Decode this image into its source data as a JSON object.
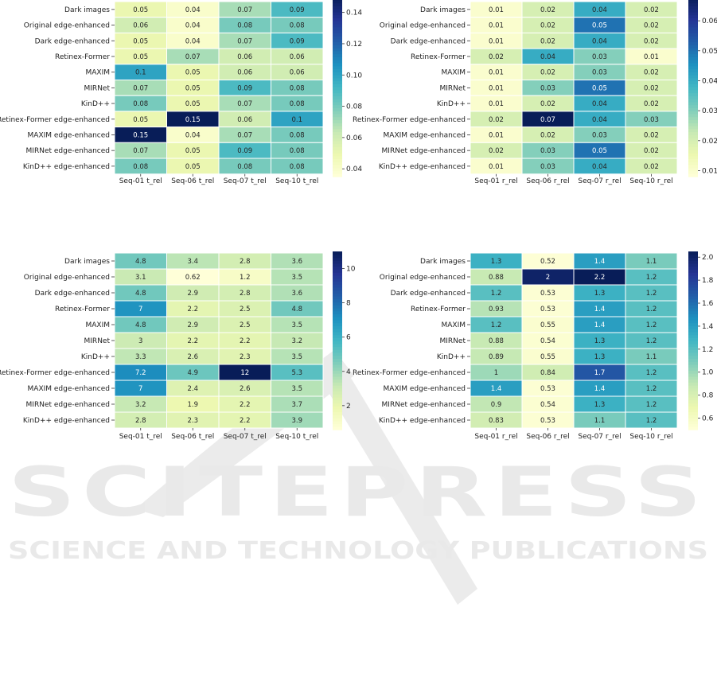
{
  "watermark": {
    "title": "SCITEPRESS",
    "subtitle": "SCIENCE AND TECHNOLOGY PUBLICATIONS"
  },
  "colormap": [
    "#ffffd9",
    "#edf8b1",
    "#c7e9b4",
    "#7fcdbb",
    "#41b6c4",
    "#1d91c0",
    "#225ea8",
    "#253494",
    "#081d58"
  ],
  "chart_data": [
    {
      "type": "heatmap",
      "rows": [
        "Dark images",
        "Original edge-enhanced",
        "Dark edge-enhanced",
        "Retinex-Former",
        "MAXIM",
        "MIRNet",
        "KinD++",
        "Retinex-Former edge-enhanced",
        "MAXIM edge-enhanced",
        "MIRNet edge-enhanced",
        "KinD++ edge-enhanced"
      ],
      "columns": [
        "Seq-01 t_rel",
        "Seq-06 t_rel",
        "Seq-07 t_rel",
        "Seq-10 t_rel"
      ],
      "values": [
        [
          0.05,
          0.04,
          0.07,
          0.09
        ],
        [
          0.06,
          0.04,
          0.08,
          0.08
        ],
        [
          0.05,
          0.04,
          0.07,
          0.09
        ],
        [
          0.05,
          0.07,
          0.06,
          0.06
        ],
        [
          0.1,
          0.05,
          0.06,
          0.06
        ],
        [
          0.07,
          0.05,
          0.09,
          0.08
        ],
        [
          0.08,
          0.05,
          0.07,
          0.08
        ],
        [
          0.05,
          0.15,
          0.06,
          0.1
        ],
        [
          0.15,
          0.04,
          0.07,
          0.08
        ],
        [
          0.07,
          0.05,
          0.09,
          0.08
        ],
        [
          0.08,
          0.05,
          0.08,
          0.08
        ]
      ],
      "labels": [
        [
          "0.05",
          "0.04",
          "0.07",
          "0.09"
        ],
        [
          "0.06",
          "0.04",
          "0.08",
          "0.08"
        ],
        [
          "0.05",
          "0.04",
          "0.07",
          "0.09"
        ],
        [
          "0.05",
          "0.07",
          "0.06",
          "0.06"
        ],
        [
          "0.1",
          "0.05",
          "0.06",
          "0.06"
        ],
        [
          "0.07",
          "0.05",
          "0.09",
          "0.08"
        ],
        [
          "0.08",
          "0.05",
          "0.07",
          "0.08"
        ],
        [
          "0.05",
          "0.15",
          "0.06",
          "0.1"
        ],
        [
          "0.15",
          "0.04",
          "0.07",
          "0.08"
        ],
        [
          "0.07",
          "0.05",
          "0.09",
          "0.08"
        ],
        [
          "0.08",
          "0.05",
          "0.08",
          "0.08"
        ]
      ],
      "vmin": 0.035,
      "vmax": 0.15,
      "colorbar_ticks": [
        0.04,
        0.06,
        0.08,
        0.1,
        0.12,
        0.14
      ],
      "colorbar_tick_labels": [
        "0.04",
        "0.06",
        "0.08",
        "0.10",
        "0.12",
        "0.14"
      ]
    },
    {
      "type": "heatmap",
      "rows": [
        "Dark images",
        "Original edge-enhanced",
        "Dark edge-enhanced",
        "Retinex-Former",
        "MAXIM",
        "MIRNet",
        "KinD++",
        "Retinex-Former edge-enhanced",
        "MAXIM edge-enhanced",
        "MIRNet edge-enhanced",
        "KinD++ edge-enhanced"
      ],
      "columns": [
        "Seq-01 r_rel",
        "Seq-06 r_rel",
        "Seq-07 r_rel",
        "Seq-10 r_rel"
      ],
      "values": [
        [
          0.01,
          0.02,
          0.04,
          0.02
        ],
        [
          0.01,
          0.02,
          0.05,
          0.02
        ],
        [
          0.01,
          0.02,
          0.04,
          0.02
        ],
        [
          0.02,
          0.04,
          0.03,
          0.01
        ],
        [
          0.01,
          0.02,
          0.03,
          0.02
        ],
        [
          0.01,
          0.03,
          0.05,
          0.02
        ],
        [
          0.01,
          0.02,
          0.04,
          0.02
        ],
        [
          0.02,
          0.07,
          0.04,
          0.03
        ],
        [
          0.01,
          0.02,
          0.03,
          0.02
        ],
        [
          0.02,
          0.03,
          0.05,
          0.02
        ],
        [
          0.01,
          0.03,
          0.04,
          0.02
        ]
      ],
      "labels": [
        [
          "0.01",
          "0.02",
          "0.04",
          "0.02"
        ],
        [
          "0.01",
          "0.02",
          "0.05",
          "0.02"
        ],
        [
          "0.01",
          "0.02",
          "0.04",
          "0.02"
        ],
        [
          "0.02",
          "0.04",
          "0.03",
          "0.01"
        ],
        [
          "0.01",
          "0.02",
          "0.03",
          "0.02"
        ],
        [
          "0.01",
          "0.03",
          "0.05",
          "0.02"
        ],
        [
          "0.01",
          "0.02",
          "0.04",
          "0.02"
        ],
        [
          "0.02",
          "0.07",
          "0.04",
          "0.03"
        ],
        [
          "0.01",
          "0.02",
          "0.03",
          "0.02"
        ],
        [
          "0.02",
          "0.03",
          "0.05",
          "0.02"
        ],
        [
          "0.01",
          "0.03",
          "0.04",
          "0.02"
        ]
      ],
      "vmin": 0.008,
      "vmax": 0.068,
      "colorbar_ticks": [
        0.01,
        0.02,
        0.03,
        0.04,
        0.05,
        0.06
      ],
      "colorbar_tick_labels": [
        "0.01",
        "0.02",
        "0.03",
        "0.04",
        "0.05",
        "0.06"
      ]
    },
    {
      "type": "heatmap",
      "rows": [
        "Dark images",
        "Original edge-enhanced",
        "Dark edge-enhanced",
        "Retinex-Former",
        "MAXIM",
        "MIRNet",
        "KinD++",
        "Retinex-Former edge-enhanced",
        "MAXIM edge-enhanced",
        "MIRNet edge-enhanced",
        "KinD++ edge-enhanced"
      ],
      "columns": [
        "Seq-01 t_rel",
        "Seq-06 t_rel",
        "Seq-07 t_rel",
        "Seq-10 t_rel"
      ],
      "values": [
        [
          4.8,
          3.4,
          2.8,
          3.6
        ],
        [
          3.1,
          0.62,
          1.2,
          3.5
        ],
        [
          4.8,
          2.9,
          2.8,
          3.6
        ],
        [
          7,
          2.2,
          2.5,
          4.8
        ],
        [
          4.8,
          2.9,
          2.5,
          3.5
        ],
        [
          3,
          2.2,
          2.2,
          3.2
        ],
        [
          3.3,
          2.6,
          2.3,
          3.5
        ],
        [
          7.2,
          4.9,
          12,
          5.3
        ],
        [
          7,
          2.4,
          2.6,
          3.5
        ],
        [
          3.2,
          1.9,
          2.2,
          3.7
        ],
        [
          2.8,
          2.3,
          2.2,
          3.9
        ]
      ],
      "labels": [
        [
          "4.8",
          "3.4",
          "2.8",
          "3.6"
        ],
        [
          "3.1",
          "0.62",
          "1.2",
          "3.5"
        ],
        [
          "4.8",
          "2.9",
          "2.8",
          "3.6"
        ],
        [
          "7",
          "2.2",
          "2.5",
          "4.8"
        ],
        [
          "4.8",
          "2.9",
          "2.5",
          "3.5"
        ],
        [
          "3",
          "2.2",
          "2.2",
          "3.2"
        ],
        [
          "3.3",
          "2.6",
          "2.3",
          "3.5"
        ],
        [
          "7.2",
          "4.9",
          "12",
          "5.3"
        ],
        [
          "7",
          "2.4",
          "2.6",
          "3.5"
        ],
        [
          "3.2",
          "1.9",
          "2.2",
          "3.7"
        ],
        [
          "2.8",
          "2.3",
          "2.2",
          "3.9"
        ]
      ],
      "vmin": 0.6,
      "vmax": 11,
      "colorbar_ticks": [
        2,
        4,
        6,
        8,
        10
      ],
      "colorbar_tick_labels": [
        "2",
        "4",
        "6",
        "8",
        "10"
      ]
    },
    {
      "type": "heatmap",
      "rows": [
        "Dark images",
        "Original edge-enhanced",
        "Dark edge-enhanced",
        "Retinex-Former",
        "MAXIM",
        "MIRNet",
        "KinD++",
        "Retinex-Former edge-enhanced",
        "MAXIM edge-enhanced",
        "MIRNet edge-enhanced",
        "KinD++ edge-enhanced"
      ],
      "columns": [
        "Seq-01 r_rel",
        "Seq-06 r_rel",
        "Seq-07 r_rel",
        "Seq-10 r_rel"
      ],
      "values": [
        [
          1.3,
          0.52,
          1.4,
          1.1
        ],
        [
          0.88,
          2,
          2.2,
          1.2
        ],
        [
          1.2,
          0.53,
          1.3,
          1.2
        ],
        [
          0.93,
          0.53,
          1.4,
          1.2
        ],
        [
          1.2,
          0.55,
          1.4,
          1.2
        ],
        [
          0.88,
          0.54,
          1.3,
          1.2
        ],
        [
          0.89,
          0.55,
          1.3,
          1.1
        ],
        [
          1,
          0.84,
          1.7,
          1.2
        ],
        [
          1.4,
          0.53,
          1.4,
          1.2
        ],
        [
          0.9,
          0.54,
          1.3,
          1.2
        ],
        [
          0.83,
          0.53,
          1.1,
          1.2
        ]
      ],
      "labels": [
        [
          "1.3",
          "0.52",
          "1.4",
          "1.1"
        ],
        [
          "0.88",
          "2",
          "2.2",
          "1.2"
        ],
        [
          "1.2",
          "0.53",
          "1.3",
          "1.2"
        ],
        [
          "0.93",
          "0.53",
          "1.4",
          "1.2"
        ],
        [
          "1.2",
          "0.55",
          "1.4",
          "1.2"
        ],
        [
          "0.88",
          "0.54",
          "1.3",
          "1.2"
        ],
        [
          "0.89",
          "0.55",
          "1.3",
          "1.1"
        ],
        [
          "1",
          "0.84",
          "1.7",
          "1.2"
        ],
        [
          "1.4",
          "0.53",
          "1.4",
          "1.2"
        ],
        [
          "0.9",
          "0.54",
          "1.3",
          "1.2"
        ],
        [
          "0.83",
          "0.53",
          "1.1",
          "1.2"
        ]
      ],
      "vmin": 0.5,
      "vmax": 2.05,
      "colorbar_ticks": [
        0.6,
        0.8,
        1.0,
        1.2,
        1.4,
        1.6,
        1.8,
        2.0
      ],
      "colorbar_tick_labels": [
        "0.6",
        "0.8",
        "1.0",
        "1.2",
        "1.4",
        "1.6",
        "1.8",
        "2.0"
      ]
    }
  ]
}
